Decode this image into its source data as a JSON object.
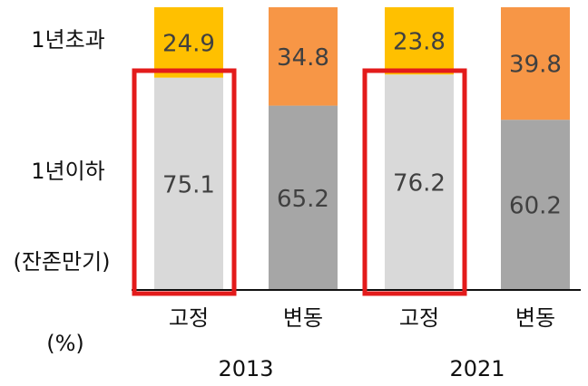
{
  "chart_data": {
    "type": "bar",
    "stacked": true,
    "categories": [
      "고정",
      "변동",
      "고정",
      "변동"
    ],
    "groups": [
      "2013",
      "2021"
    ],
    "series": [
      {
        "name": "1년이하",
        "colors": [
          "#d9d9d9",
          "#a6a6a6",
          "#d9d9d9",
          "#a6a6a6"
        ],
        "values": [
          75.1,
          65.2,
          76.2,
          60.2
        ]
      },
      {
        "name": "1년초과",
        "colors": [
          "#ffc000",
          "#f79646",
          "#ffc000",
          "#f79646"
        ],
        "values": [
          24.9,
          34.8,
          23.8,
          39.8
        ]
      }
    ],
    "axis_note": "(잔존만기)",
    "unit": "(%)",
    "ylim": [
      0,
      100
    ],
    "highlight": [
      0,
      2
    ],
    "highlight_color": "#e31b1b"
  }
}
